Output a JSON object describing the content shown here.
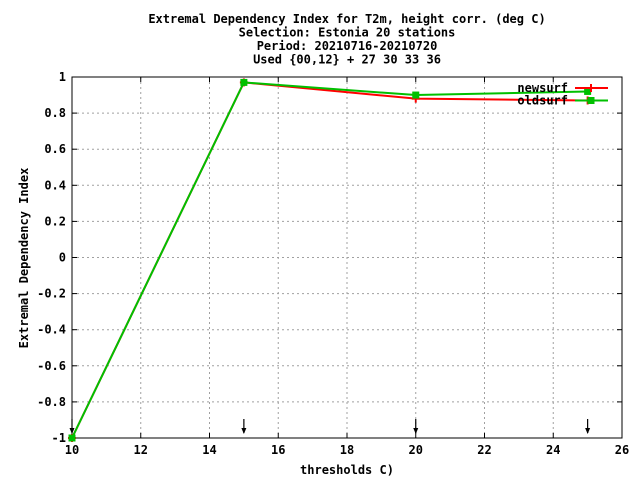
{
  "chart_data": {
    "type": "line",
    "title_lines": [
      "Extremal Dependency Index  for T2m, height corr. (deg C)",
      "Selection: Estonia     20 stations",
      "Period: 20210716-20210720",
      "Used {00,12} + 27 30 33 36"
    ],
    "xlabel": "thresholds C)",
    "ylabel": "Extremal Dependency Index",
    "xlim": [
      10,
      26
    ],
    "ylim": [
      -1,
      1
    ],
    "x_ticks": [
      10,
      12,
      14,
      16,
      18,
      20,
      22,
      24,
      26
    ],
    "y_ticks": [
      -1,
      -0.8,
      -0.6,
      -0.4,
      -0.2,
      0,
      0.2,
      0.4,
      0.6,
      0.8,
      1
    ],
    "x_tick_labels": [
      "10",
      "12",
      "14",
      "16",
      "18",
      "20",
      "22",
      "24",
      "26"
    ],
    "y_tick_labels": [
      "-1",
      "-0.8",
      "-0.6",
      "-0.4",
      "-0.2",
      "0",
      "0.2",
      "0.4",
      "0.6",
      "0.8",
      "1"
    ],
    "grid": true,
    "legend_position": "top-right",
    "arrow_markers_x": [
      10,
      15,
      20,
      25
    ],
    "series": [
      {
        "name": "newsurf",
        "color": "#ff0000",
        "marker": "plus",
        "x": [
          10,
          15,
          20,
          25
        ],
        "y": [
          -1,
          0.97,
          0.88,
          0.87
        ]
      },
      {
        "name": "oldsurf",
        "color": "#00c000",
        "marker": "square",
        "x": [
          10,
          15,
          20,
          25
        ],
        "y": [
          -1,
          0.97,
          0.9,
          0.92
        ]
      }
    ]
  }
}
